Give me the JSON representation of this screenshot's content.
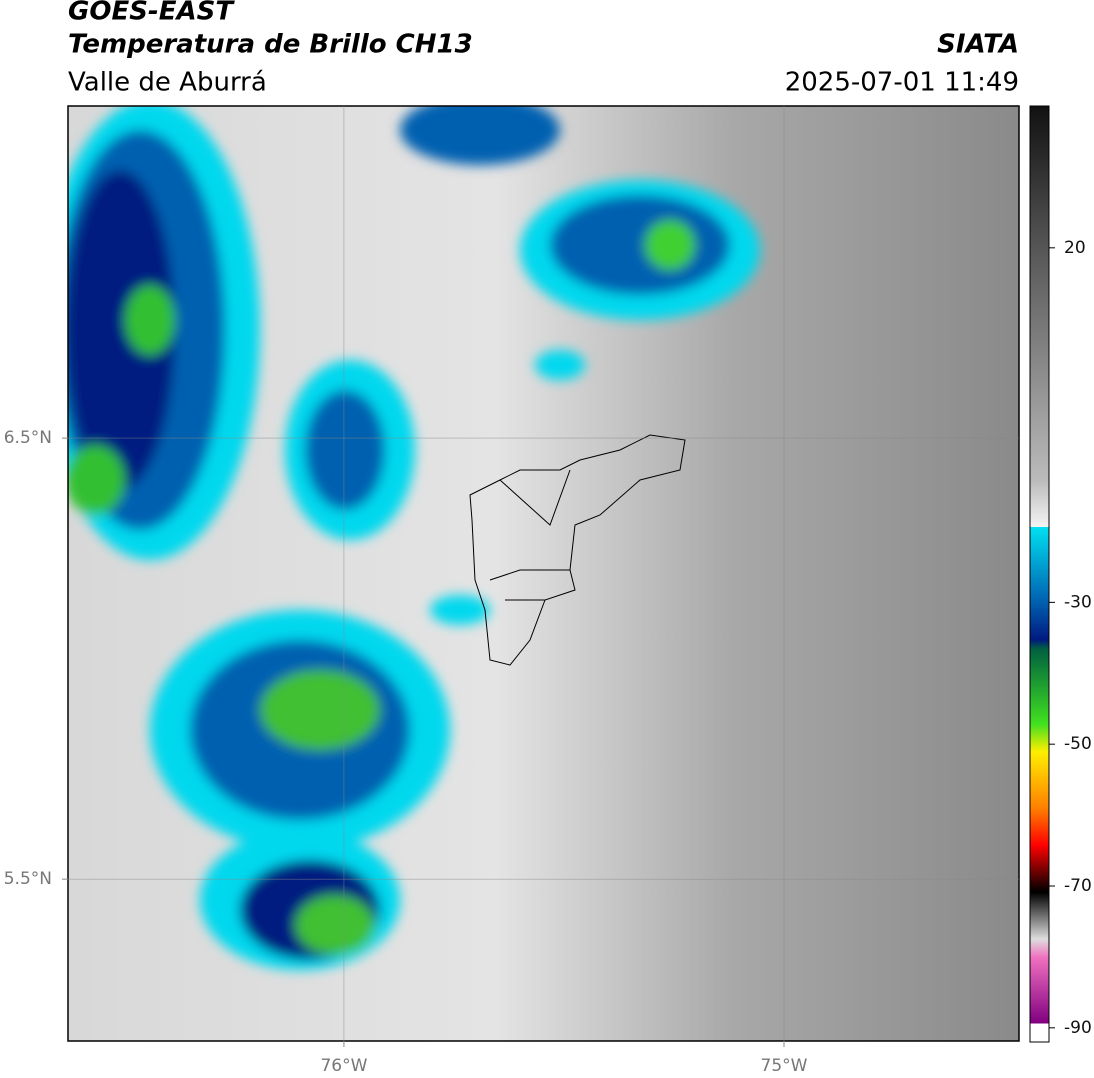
{
  "header": {
    "title": "GOES-EAST",
    "subtitle": "Temperatura de Brillo CH13",
    "region": "Valle de Aburrá",
    "agency": "SIATA",
    "timestamp": "2025-07-01 11:49"
  },
  "map": {
    "xlim": [
      -76.627,
      -74.466
    ],
    "ylim": [
      5.133,
      7.253
    ],
    "xticks": [
      {
        "value": -76,
        "label": "76°W"
      },
      {
        "value": -75,
        "label": "75°W"
      }
    ],
    "yticks": [
      {
        "value": 6.5,
        "label": "6.5°N"
      },
      {
        "value": 5.5,
        "label": "5.5°N"
      }
    ]
  },
  "colorbar": {
    "lim": [
      -92,
      40
    ],
    "ticks": [
      20,
      -30,
      -50,
      -70,
      -90
    ]
  }
}
